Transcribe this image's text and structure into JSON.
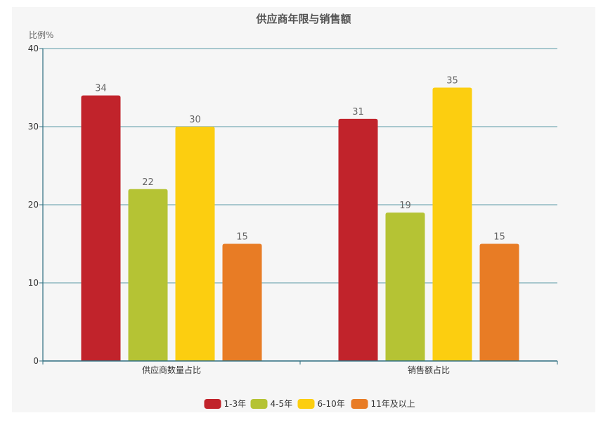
{
  "chart_data": {
    "type": "bar",
    "title": "供应商年限与销售额",
    "ylabel": "比例%",
    "xlabel": "",
    "ylim": [
      0,
      40
    ],
    "yticks": [
      0,
      10,
      20,
      30,
      40
    ],
    "categories": [
      "供应商数量占比",
      "销售额占比"
    ],
    "series": [
      {
        "name": "1-3年",
        "color": "#c1232b",
        "values": [
          34,
          31
        ]
      },
      {
        "name": "4-5年",
        "color": "#b5c334",
        "values": [
          22,
          19
        ]
      },
      {
        "name": "6-10年",
        "color": "#fcce10",
        "values": [
          30,
          35
        ]
      },
      {
        "name": "11年及以上",
        "color": "#e87c25",
        "values": [
          15,
          15
        ]
      }
    ],
    "grid": true,
    "legend_position": "bottom-center",
    "data_labels": true
  }
}
